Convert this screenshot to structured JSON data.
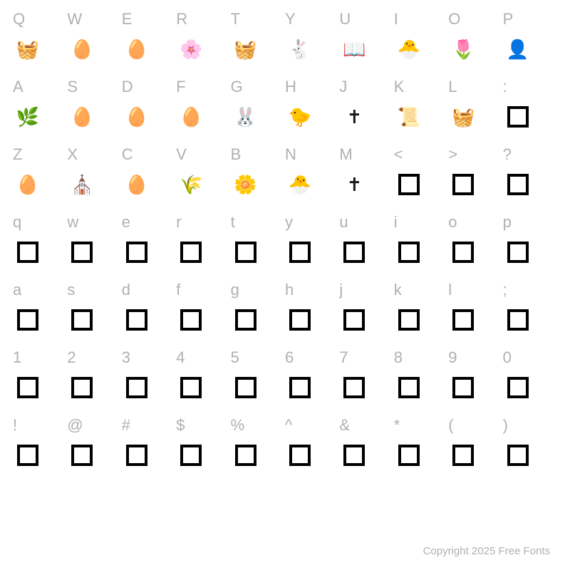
{
  "label_color": "#b0b0b0",
  "glyph_color": "#2a2a2a",
  "background_color": "#ffffff",
  "box_border_color": "#000000",
  "label_fontsize": 22,
  "footer_fontsize": 15,
  "rows": [
    {
      "labels": [
        "Q",
        "W",
        "E",
        "R",
        "T",
        "Y",
        "U",
        "I",
        "O",
        "P"
      ],
      "glyphs": [
        "🧺",
        "🥚",
        "🥚",
        "🌸",
        "🧺",
        "🐇",
        "📖",
        "🐣",
        "🌷",
        "👤"
      ],
      "types": [
        "d",
        "d",
        "d",
        "d",
        "d",
        "d",
        "d",
        "d",
        "d",
        "d"
      ]
    },
    {
      "labels": [
        "A",
        "S",
        "D",
        "F",
        "G",
        "H",
        "J",
        "K",
        "L",
        ":"
      ],
      "glyphs": [
        "🌿",
        "🥚",
        "🥚",
        "🥚",
        "🐰",
        "🐤",
        "✝",
        "📜",
        "🧺",
        ""
      ],
      "types": [
        "d",
        "d",
        "d",
        "d",
        "d",
        "d",
        "d",
        "d",
        "d",
        "box"
      ]
    },
    {
      "labels": [
        "Z",
        "X",
        "C",
        "V",
        "B",
        "N",
        "M",
        "<",
        ">",
        "?"
      ],
      "glyphs": [
        "🥚",
        "⛪",
        "🥚",
        "🌾",
        "🌼",
        "🐣",
        "✝",
        "",
        "",
        ""
      ],
      "types": [
        "d",
        "d",
        "d",
        "d",
        "d",
        "d",
        "d",
        "box",
        "box",
        "box"
      ]
    },
    {
      "labels": [
        "q",
        "w",
        "e",
        "r",
        "t",
        "y",
        "u",
        "i",
        "o",
        "p"
      ],
      "glyphs": [
        "",
        "",
        "",
        "",
        "",
        "",
        "",
        "",
        "",
        ""
      ],
      "types": [
        "box",
        "box",
        "box",
        "box",
        "box",
        "box",
        "box",
        "box",
        "box",
        "box"
      ]
    },
    {
      "labels": [
        "a",
        "s",
        "d",
        "f",
        "g",
        "h",
        "j",
        "k",
        "l",
        ";"
      ],
      "glyphs": [
        "",
        "",
        "",
        "",
        "",
        "",
        "",
        "",
        "",
        ""
      ],
      "types": [
        "box",
        "box",
        "box",
        "box",
        "box",
        "box",
        "box",
        "box",
        "box",
        "box"
      ]
    },
    {
      "labels": [
        "1",
        "2",
        "3",
        "4",
        "5",
        "6",
        "7",
        "8",
        "9",
        "0"
      ],
      "glyphs": [
        "",
        "",
        "",
        "",
        "",
        "",
        "",
        "",
        "",
        ""
      ],
      "types": [
        "box",
        "box",
        "box",
        "box",
        "box",
        "box",
        "box",
        "box",
        "box",
        "box"
      ]
    },
    {
      "labels": [
        "!",
        "@",
        "#",
        "$",
        "%",
        "^",
        "&",
        "*",
        "(",
        ")"
      ],
      "glyphs": [
        "",
        "",
        "",
        "",
        "",
        "",
        "",
        "",
        "",
        ""
      ],
      "types": [
        "box",
        "box",
        "box",
        "box",
        "box",
        "box",
        "box",
        "box",
        "box",
        "box"
      ]
    }
  ],
  "footer": "Copyright 2025 Free Fonts"
}
